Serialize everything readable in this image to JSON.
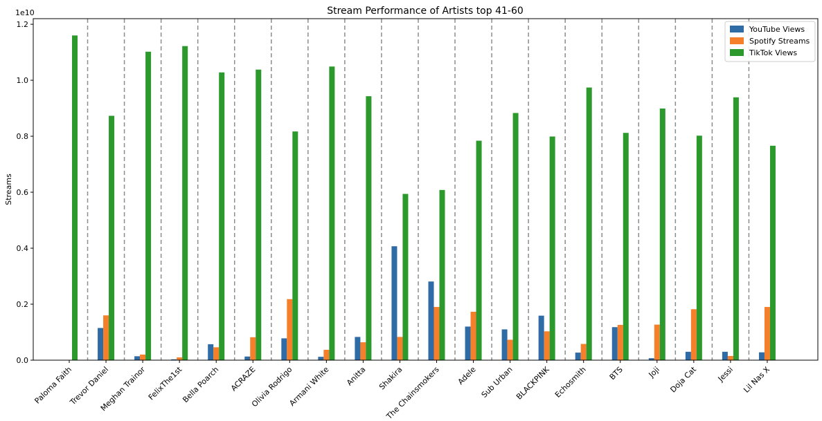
{
  "chart_data": {
    "type": "bar",
    "title": "Stream Performance of Artists top 41-60",
    "xlabel": "",
    "ylabel": "Streams",
    "scale_label": "1e10",
    "ylim": [
      0,
      12200000000.0
    ],
    "yticks": [
      0,
      2000000000.0,
      4000000000.0,
      6000000000.0,
      8000000000.0,
      10000000000.0,
      12000000000.0
    ],
    "ytick_labels": [
      "0.0",
      "0.2",
      "0.4",
      "0.6",
      "0.8",
      "1.0",
      "1.2"
    ],
    "legend_position": "top-right",
    "grid": false,
    "category_separators": "dashed",
    "categories": [
      "Paloma Faith",
      "Trevor Daniel",
      "Meghan Trainor",
      "FelixThe1st",
      "Bella Poarch",
      "ACRAZE",
      "Olivia Rodrigo",
      "Armani White",
      "Anitta",
      "Shakira",
      "The Chainsmokers",
      "Adele",
      "Sub Urban",
      "BLACKPINK",
      "Echosmith",
      "BTS",
      "Joji",
      "Doja Cat",
      "Jessi",
      "Lil Nas X"
    ],
    "series": [
      {
        "name": "YouTube Views",
        "color": "#2f6ba4",
        "values": [
          0,
          1150000000,
          140000000,
          30000000,
          570000000,
          130000000,
          780000000,
          120000000,
          830000000,
          4070000000,
          2810000000,
          1200000000,
          1100000000,
          1590000000,
          270000000,
          1180000000,
          70000000,
          300000000,
          300000000,
          280000000
        ]
      },
      {
        "name": "Spotify Streams",
        "color": "#f57f2a",
        "values": [
          0,
          1600000000,
          200000000,
          100000000,
          460000000,
          820000000,
          2180000000,
          370000000,
          640000000,
          830000000,
          1900000000,
          1730000000,
          730000000,
          1030000000,
          580000000,
          1260000000,
          1270000000,
          1820000000,
          150000000,
          1900000000
        ]
      },
      {
        "name": "TikTok Views",
        "color": "#2c992c",
        "values": [
          11600000000,
          8730000000,
          11020000000,
          11220000000,
          10280000000,
          10380000000,
          8170000000,
          10490000000,
          9430000000,
          5940000000,
          6080000000,
          7840000000,
          8830000000,
          7990000000,
          9740000000,
          8120000000,
          8990000000,
          8020000000,
          9390000000,
          7660000000
        ]
      }
    ]
  }
}
